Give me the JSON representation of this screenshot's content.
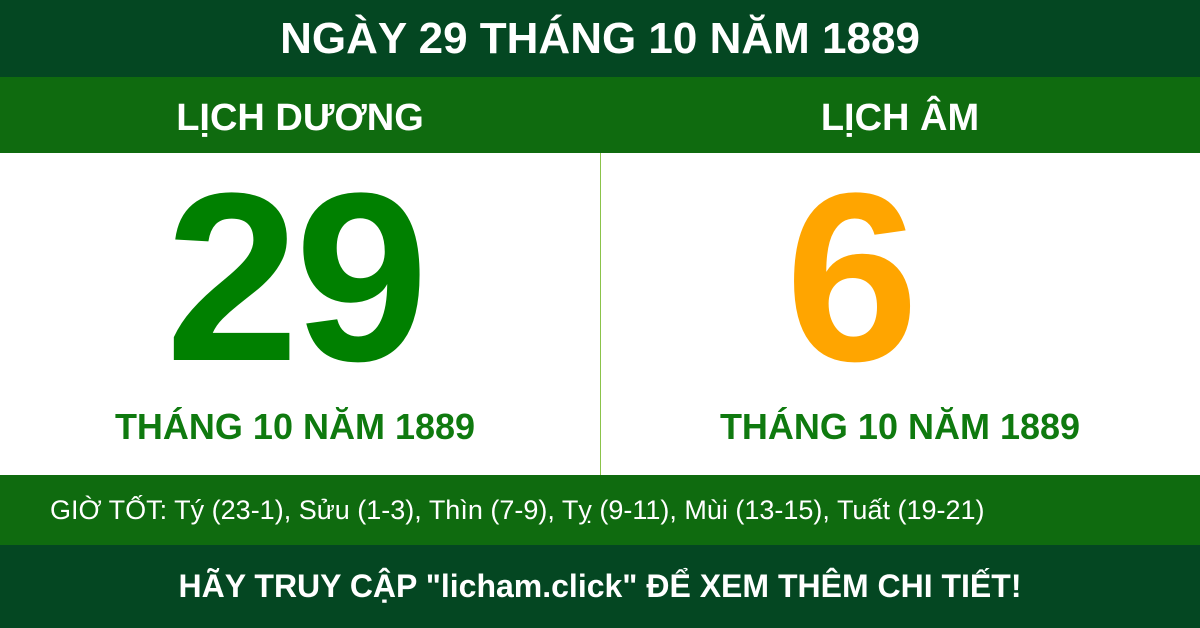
{
  "title": "NGÀY 29 THÁNG 10 NĂM 1889",
  "solar": {
    "heading": "LỊCH DƯƠNG",
    "day": "29",
    "month_year": "THÁNG 10 NĂM 1889",
    "color": "#008000"
  },
  "lunar": {
    "heading": "LỊCH ÂM",
    "day": "6",
    "month_year": "THÁNG 10 NĂM 1889",
    "color": "#ffa500"
  },
  "good_hours": "GIỜ TỐT: Tý (23-1), Sửu (1-3), Thìn (7-9), Tỵ (9-11), Mùi (13-15), Tuất (19-21)",
  "footer": "HÃY TRUY CẬP \"licham.click\" ĐỂ XEM THÊM CHI TIẾT!"
}
